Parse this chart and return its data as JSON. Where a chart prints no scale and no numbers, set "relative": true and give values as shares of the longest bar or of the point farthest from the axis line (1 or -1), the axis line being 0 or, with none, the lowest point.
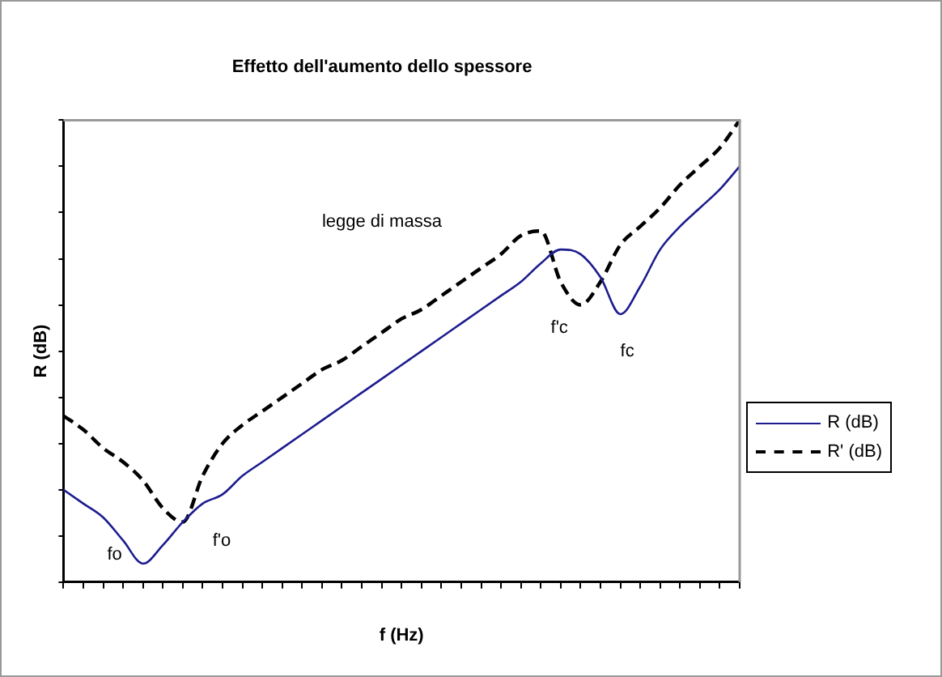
{
  "chart_data": {
    "type": "line",
    "title": "Effetto dell'aumento dello spessore",
    "xlabel": "f (Hz)",
    "ylabel": "R (dB)",
    "relative": true,
    "grid": false,
    "legend": "right",
    "tick_labels": false,
    "marker": "none",
    "categories": [
      null,
      null,
      null,
      null,
      null,
      null,
      null,
      null,
      null,
      null,
      null,
      null,
      null,
      null,
      null,
      null,
      null,
      null,
      null,
      null,
      null,
      null,
      null,
      null,
      null,
      null,
      null,
      null,
      null,
      null,
      null,
      null,
      null,
      null,
      null
    ],
    "series": [
      {
        "name": "R (dB)",
        "color": "#1c1c8e",
        "line_style": "solid",
        "values": [
          0.2,
          0.17,
          0.14,
          0.09,
          0.04,
          0.08,
          0.13,
          0.17,
          0.19,
          0.23,
          0.26,
          0.29,
          0.32,
          0.35,
          0.38,
          0.41,
          0.44,
          0.47,
          0.5,
          0.53,
          0.56,
          0.59,
          0.62,
          0.65,
          0.69,
          0.72,
          0.71,
          0.66,
          0.58,
          0.64,
          0.72,
          0.77,
          0.81,
          0.85,
          0.9
        ]
      },
      {
        "name": "R' (dB)",
        "color": "#000000",
        "line_style": "dashed",
        "values": [
          0.36,
          0.33,
          0.29,
          0.26,
          0.22,
          0.16,
          0.13,
          0.23,
          0.3,
          0.34,
          0.37,
          0.4,
          0.43,
          0.46,
          0.48,
          0.51,
          0.54,
          0.57,
          0.59,
          0.62,
          0.65,
          0.68,
          0.71,
          0.75,
          0.76,
          0.65,
          0.6,
          0.65,
          0.73,
          0.77,
          0.81,
          0.86,
          0.9,
          0.94,
          1.0
        ]
      }
    ],
    "annotations": [
      "legge di massa",
      "fo",
      "f'o",
      "f'c",
      "fc"
    ]
  }
}
